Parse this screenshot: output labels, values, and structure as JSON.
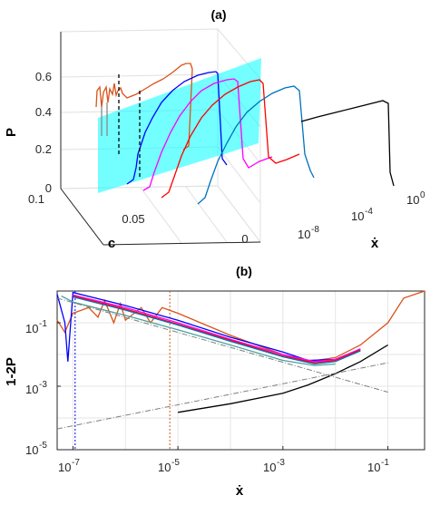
{
  "panel_a": {
    "title": "(a)",
    "ylabel": "P",
    "clabel": "c",
    "xlabel": "ẋ",
    "p_ticks": [
      "0",
      "0.2",
      "0.4",
      "0.6"
    ],
    "c_ticks": [
      "0.1",
      "0.05",
      "0"
    ],
    "x_ticks": [
      {
        "base": "10",
        "exp": "-8"
      },
      {
        "base": "10",
        "exp": "-4"
      },
      {
        "base": "10",
        "exp": "0"
      }
    ]
  },
  "panel_b": {
    "title": "(b)",
    "ylabel": "1-2P",
    "xlabel": "ẋ",
    "x_ticks": [
      {
        "base": "10",
        "exp": "-7"
      },
      {
        "base": "10",
        "exp": "-5"
      },
      {
        "base": "10",
        "exp": "-3"
      },
      {
        "base": "10",
        "exp": "-1"
      }
    ],
    "y_ticks": [
      {
        "base": "10",
        "exp": "-1"
      },
      {
        "base": "10",
        "exp": "-3"
      },
      {
        "base": "10",
        "exp": "-5"
      }
    ]
  },
  "colors": {
    "orange": "#d95319",
    "blue": "#0000ff",
    "magenta": "#ff00ff",
    "red": "#ff0000",
    "steelblue": "#0072bd",
    "black": "#000000",
    "cyan_plane": "#00ffff",
    "gray": "#7f7f7f",
    "teal": "#4da0a0"
  },
  "chart_data": [
    {
      "type": "line",
      "panel": "(a)",
      "projection": "3d",
      "xscale": "log",
      "xlim": [
        1e-10,
        1
      ],
      "ylim": [
        0,
        0.12
      ],
      "zlim": [
        0,
        0.65
      ],
      "xlabel": "ẋ",
      "ylabel": "c",
      "zlabel": "P",
      "grid": true,
      "plane": {
        "color": "cyan",
        "c": 0.06
      },
      "series": [
        {
          "color": "orange",
          "c": 0.1,
          "x": [
            1e-09,
            2e-09,
            3e-09,
            5e-09,
            7e-09,
            1e-08,
            2e-08,
            1e-07,
            1e-06,
            1e-05,
            0.0001,
            0.001,
            0.002,
            0.004,
            0.006,
            0.01,
            0.02
          ],
          "P": [
            0.45,
            0.52,
            0.47,
            0.53,
            0.49,
            0.5,
            0.51,
            0.52,
            0.54,
            0.57,
            0.6,
            0.61,
            0.61,
            0.6,
            0.45,
            0.2,
            0.0
          ]
        },
        {
          "color": "blue",
          "c": 0.08,
          "x": [
            1e-07,
            2e-07,
            5e-07,
            1e-06,
            1e-05,
            0.0001,
            0.001,
            0.003,
            0.006,
            0.01,
            0.02
          ],
          "P": [
            0.0,
            0.45,
            0.48,
            0.49,
            0.495,
            0.497,
            0.498,
            0.499,
            0.5,
            0.1,
            0.0
          ]
        },
        {
          "color": "magenta",
          "c": 0.06,
          "x": [
            1e-07,
            1e-06,
            1e-05,
            0.0001,
            0.001,
            0.004,
            0.007,
            0.01,
            0.02
          ],
          "P": [
            0.0,
            0.25,
            0.4,
            0.47,
            0.49,
            0.495,
            0.497,
            0.1,
            0.0
          ]
        },
        {
          "color": "red",
          "c": 0.04,
          "x": [
            1e-07,
            1e-06,
            1e-05,
            0.0001,
            0.001,
            0.004,
            0.007,
            0.01,
            0.02
          ],
          "P": [
            0.0,
            0.2,
            0.38,
            0.46,
            0.49,
            0.495,
            0.497,
            0.1,
            0.0
          ]
        },
        {
          "color": "steelblue",
          "c": 0.02,
          "x": [
            1e-07,
            1e-06,
            1e-05,
            0.0001,
            0.001,
            0.004,
            0.007,
            0.01,
            0.02
          ],
          "P": [
            0.0,
            0.18,
            0.36,
            0.45,
            0.49,
            0.495,
            0.497,
            0.1,
            0.0
          ]
        },
        {
          "color": "black",
          "c": 0.0,
          "x": [
            1e-10,
            1e-08,
            1e-06,
            0.0001,
            0.001,
            0.005,
            0.01,
            0.03,
            0.1
          ],
          "P": [
            0.38,
            0.4,
            0.42,
            0.44,
            0.46,
            0.47,
            0.47,
            0.0,
            0.0
          ]
        }
      ]
    },
    {
      "type": "line",
      "panel": "(b)",
      "xscale": "log",
      "yscale": "log",
      "xlim": [
        5e-08,
        0.5
      ],
      "ylim": [
        1e-05,
        1
      ],
      "xlabel": "ẋ",
      "ylabel": "1-2P",
      "grid": true,
      "series": [
        {
          "color": "orange",
          "x": [
            5e-08,
            7e-08,
            1e-07,
            2e-07,
            3e-07,
            4e-07,
            6e-07,
            8e-07,
            1e-06,
            2e-06,
            3e-06,
            5e-06,
            1e-05,
            0.0001,
            0.001,
            0.003,
            0.01,
            0.03,
            0.1,
            0.2,
            0.5
          ],
          "y": [
            0.12,
            0.05,
            0.2,
            0.3,
            0.15,
            0.5,
            0.1,
            0.4,
            0.12,
            0.3,
            0.1,
            0.3,
            0.2,
            0.04,
            0.01,
            0.006,
            0.008,
            0.02,
            0.1,
            0.6,
            1.0
          ]
        },
        {
          "color": "blue",
          "x": [
            5e-08,
            7e-08,
            8e-08,
            1e-07,
            1e-06,
            1e-05,
            0.0001,
            0.001,
            0.003,
            0.01,
            0.03
          ],
          "y": [
            0.8,
            0.1,
            0.006,
            0.9,
            0.35,
            0.12,
            0.035,
            0.012,
            0.0065,
            0.007,
            0.015
          ]
        },
        {
          "color": "magenta",
          "x": [
            1e-07,
            1e-06,
            1e-05,
            0.0001,
            0.001,
            0.004,
            0.01,
            0.03
          ],
          "y": [
            0.75,
            0.3,
            0.1,
            0.03,
            0.01,
            0.006,
            0.007,
            0.015
          ]
        },
        {
          "color": "red",
          "x": [
            1e-07,
            1e-06,
            1e-05,
            0.0001,
            0.001,
            0.004,
            0.01,
            0.03
          ],
          "y": [
            0.7,
            0.27,
            0.09,
            0.028,
            0.009,
            0.0055,
            0.0065,
            0.014
          ]
        },
        {
          "color": "steelblue",
          "x": [
            1e-07,
            1e-06,
            1e-05,
            0.0001,
            0.001,
            0.004,
            0.01,
            0.03
          ],
          "y": [
            0.65,
            0.25,
            0.085,
            0.026,
            0.0085,
            0.005,
            0.006,
            0.013
          ]
        },
        {
          "color": "teal",
          "x": [
            6e-08,
            1e-07,
            1e-06,
            1e-05,
            0.0001,
            0.001,
            0.004,
            0.01
          ],
          "y": [
            0.7,
            0.45,
            0.17,
            0.06,
            0.02,
            0.0065,
            0.0045,
            0.005
          ]
        },
        {
          "color": "black",
          "x": [
            1e-05,
            0.0001,
            0.001,
            0.003,
            0.01,
            0.03,
            0.1
          ],
          "y": [
            0.00015,
            0.00028,
            0.0006,
            0.0011,
            0.0025,
            0.006,
            0.02
          ]
        },
        {
          "color": "gray",
          "style": "dash-dot",
          "x": [
            5e-08,
            0.1
          ],
          "y": [
            4.5e-05,
            0.0055
          ]
        },
        {
          "color": "gray",
          "style": "dash-dot",
          "x": [
            5e-08,
            0.1
          ],
          "y": [
            0.6,
            0.00065
          ]
        }
      ],
      "vlines": [
        {
          "color": "blue",
          "x": 1.1e-07,
          "style": "dotted"
        },
        {
          "color": "orange",
          "x": 7e-06,
          "style": "dotted"
        }
      ]
    }
  ]
}
